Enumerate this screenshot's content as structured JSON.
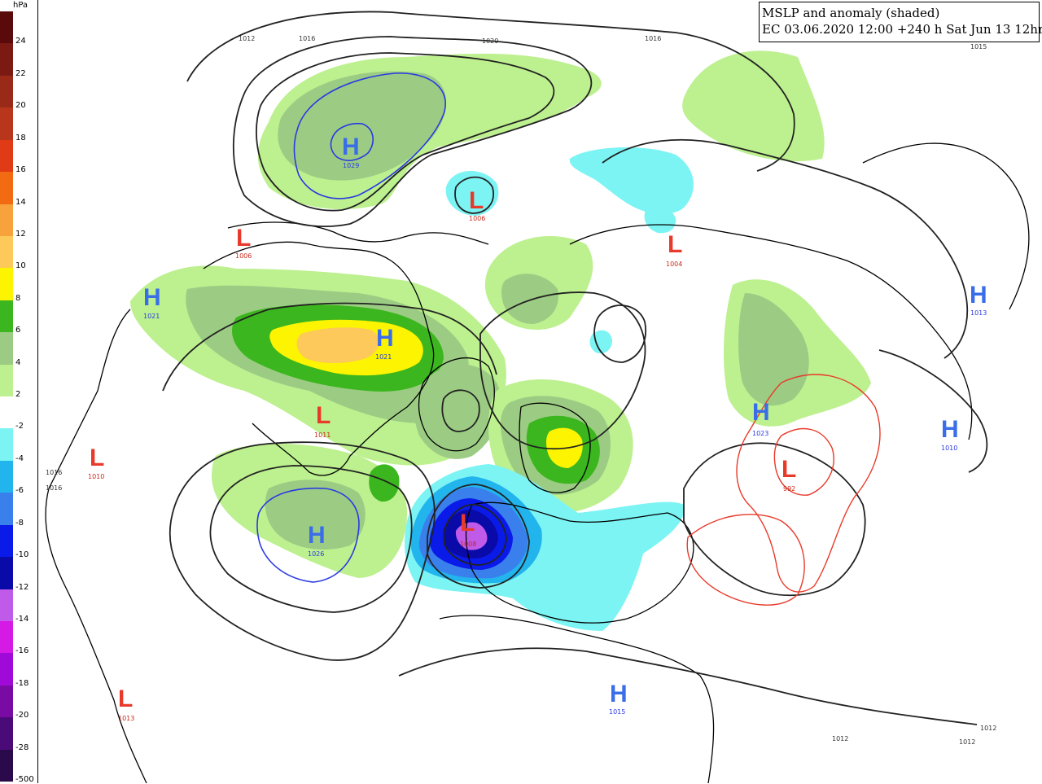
{
  "title": {
    "line1": "MSLP and anomaly (shaded)",
    "line2": "EC 03.06.2020 12:00 +240 h Sat Jun 13 12hrs"
  },
  "legend": {
    "unit": "hPa",
    "steps": [
      {
        "label": "24",
        "color": "#5a0a0a"
      },
      {
        "label": "22",
        "color": "#7a1a12"
      },
      {
        "label": "20",
        "color": "#9a2a18"
      },
      {
        "label": "18",
        "color": "#b8361c"
      },
      {
        "label": "16",
        "color": "#e03a16"
      },
      {
        "label": "14",
        "color": "#f26a12"
      },
      {
        "label": "12",
        "color": "#f7a23a"
      },
      {
        "label": "10",
        "color": "#fcc95a"
      },
      {
        "label": "8",
        "color": "#fcf400"
      },
      {
        "label": "6",
        "color": "#3cb61e"
      },
      {
        "label": "4",
        "color": "#9ccc84"
      },
      {
        "label": "2",
        "color": "#bdf08f"
      },
      {
        "label": "-2",
        "color": "#ffffff"
      },
      {
        "label": "-4",
        "color": "#7cf4f4"
      },
      {
        "label": "-6",
        "color": "#22b4ec"
      },
      {
        "label": "-8",
        "color": "#3a80ec"
      },
      {
        "label": "-10",
        "color": "#0a1ae8"
      },
      {
        "label": "-12",
        "color": "#0a0aa8"
      },
      {
        "label": "-14",
        "color": "#c05ae8"
      },
      {
        "label": "-16",
        "color": "#d41ae4"
      },
      {
        "label": "-18",
        "color": "#a00ad8"
      },
      {
        "label": "-20",
        "color": "#7a0aa4"
      },
      {
        "label": "-28",
        "color": "#4a0a78"
      },
      {
        "label": "-500",
        "color": "#2a0a4a"
      }
    ]
  },
  "pressure_centers": [
    {
      "type": "H",
      "value": "1029",
      "color": "#3a6ee8"
    },
    {
      "type": "L",
      "value": "1006",
      "color": "#e83a2a"
    },
    {
      "type": "L",
      "value": "1006",
      "color": "#e83a2a"
    },
    {
      "type": "L",
      "value": "1004",
      "color": "#e83a2a"
    },
    {
      "type": "H",
      "value": "1021",
      "color": "#3a6ee8"
    },
    {
      "type": "H",
      "value": "1021",
      "color": "#3a6ee8"
    },
    {
      "type": "L",
      "value": "1011",
      "color": "#e83a2a"
    },
    {
      "type": "L",
      "value": "1010",
      "color": "#e83a2a"
    },
    {
      "type": "H",
      "value": "1026",
      "color": "#3a6ee8"
    },
    {
      "type": "L",
      "value": "1008",
      "color": "#e83a2a"
    },
    {
      "type": "H",
      "value": "1023",
      "color": "#3a6ee8"
    },
    {
      "type": "L",
      "value": "992",
      "color": "#e83a2a"
    },
    {
      "type": "H",
      "value": "1013",
      "color": "#3a6ee8"
    },
    {
      "type": "H",
      "value": "1010",
      "color": "#3a6ee8"
    },
    {
      "type": "H",
      "value": "1015",
      "color": "#3a6ee8"
    },
    {
      "type": "L",
      "value": "1013",
      "color": "#e83a2a"
    }
  ],
  "isobar_labels": [
    "1012",
    "1016",
    "1020",
    "1016",
    "1015",
    "1016",
    "1016",
    "1012",
    "1012",
    "1012"
  ]
}
